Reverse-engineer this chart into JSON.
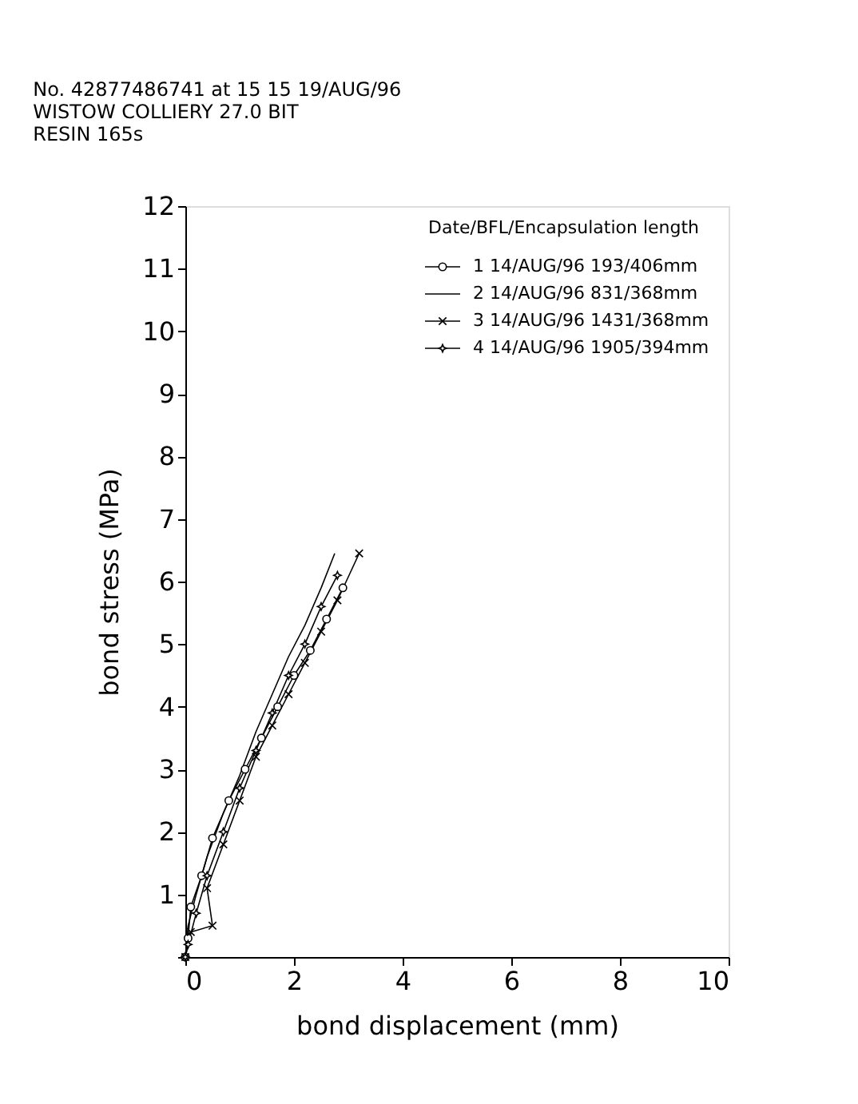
{
  "chart_data": {
    "type": "line",
    "annotations": [
      "No. 42877486741 at 15 15 19/AUG/96",
      "WISTOW COLLIERY   27.0 BIT",
      "RESIN 165s"
    ],
    "xlabel": "bond displacement (mm)",
    "ylabel": "bond stress (MPa)",
    "legend_title": "Date/BFL/Encapsulation length",
    "legend": "top right",
    "grid": false,
    "xlim": [
      0,
      10
    ],
    "xticks": [
      0,
      2,
      4,
      6,
      8,
      10
    ],
    "ylim": [
      0,
      12
    ],
    "yticks": [
      {
        "value": 0,
        "label": null
      },
      1,
      2,
      3,
      4,
      5,
      6,
      7,
      8,
      9,
      10,
      11,
      12
    ],
    "series": [
      {
        "name": "1  14/AUG/96   193/406mm",
        "color": "#000000",
        "marker": "circle",
        "x": [
          0,
          0.05,
          0.1,
          0.3,
          0.5,
          0.8,
          1.1,
          1.4,
          1.7,
          2.0,
          2.3,
          2.6,
          2.9
        ],
        "values": [
          0,
          0.3,
          0.8,
          1.3,
          1.9,
          2.5,
          3.0,
          3.5,
          4.0,
          4.5,
          4.9,
          5.4,
          5.9
        ]
      },
      {
        "name": "2  14/AUG/96   831/368mm",
        "color": "#000000",
        "marker": "none",
        "x": [
          0,
          0.05,
          0.2,
          0.4,
          0.7,
          1.0,
          1.3,
          1.6,
          1.9,
          2.2,
          2.5,
          2.75
        ],
        "values": [
          0,
          0.5,
          1.0,
          1.6,
          2.3,
          2.9,
          3.6,
          4.2,
          4.8,
          5.3,
          5.9,
          6.45
        ]
      },
      {
        "name": "3  14/AUG/96   1431/368mm",
        "color": "#000000",
        "marker": "cross",
        "x": [
          0,
          0.1,
          0.5,
          0.4,
          0.7,
          1.0,
          1.3,
          1.6,
          1.9,
          2.2,
          2.5,
          2.8,
          3.2
        ],
        "values": [
          0,
          0.4,
          0.5,
          1.1,
          1.8,
          2.5,
          3.2,
          3.7,
          4.2,
          4.7,
          5.2,
          5.7,
          6.45
        ]
      },
      {
        "name": "4  14/AUG/96   1905/394mm",
        "color": "#000000",
        "marker": "star",
        "x": [
          0,
          0.05,
          0.2,
          0.4,
          0.7,
          1.0,
          1.3,
          1.6,
          1.9,
          2.2,
          2.5,
          2.8
        ],
        "values": [
          0,
          0.2,
          0.7,
          1.3,
          2.0,
          2.7,
          3.3,
          3.9,
          4.5,
          5.0,
          5.6,
          6.1
        ]
      }
    ]
  }
}
